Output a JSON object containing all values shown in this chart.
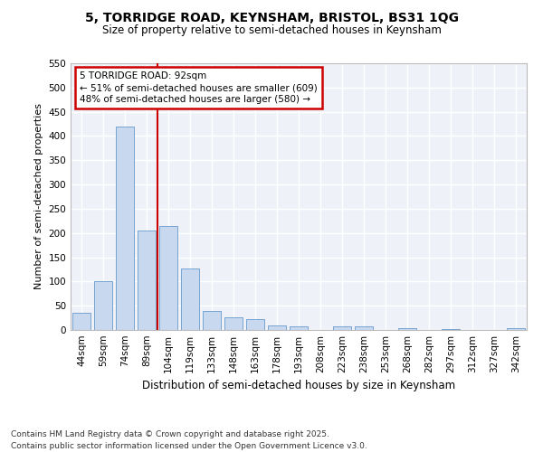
{
  "title1": "5, TORRIDGE ROAD, KEYNSHAM, BRISTOL, BS31 1QG",
  "title2": "Size of property relative to semi-detached houses in Keynsham",
  "categories": [
    "44sqm",
    "59sqm",
    "74sqm",
    "89sqm",
    "104sqm",
    "119sqm",
    "133sqm",
    "148sqm",
    "163sqm",
    "178sqm",
    "193sqm",
    "208sqm",
    "223sqm",
    "238sqm",
    "253sqm",
    "268sqm",
    "282sqm",
    "297sqm",
    "312sqm",
    "327sqm",
    "342sqm"
  ],
  "values": [
    35,
    101,
    420,
    206,
    215,
    126,
    40,
    27,
    22,
    10,
    8,
    0,
    8,
    8,
    0,
    3,
    0,
    2,
    0,
    0,
    4
  ],
  "bar_color": "#c8d8ee",
  "bar_edge_color": "#6699cc",
  "subject_line_color": "#cc0000",
  "annotation_title": "5 TORRIDGE ROAD: 92sqm",
  "annotation_line1": "← 51% of semi-detached houses are smaller (609)",
  "annotation_line2": "48% of semi-detached houses are larger (580) →",
  "annotation_box_edge_color": "#cc0000",
  "ylabel": "Number of semi-detached properties",
  "xlabel": "Distribution of semi-detached houses by size in Keynsham",
  "ylim": [
    0,
    550
  ],
  "yticks": [
    0,
    50,
    100,
    150,
    200,
    250,
    300,
    350,
    400,
    450,
    500,
    550
  ],
  "footer1": "Contains HM Land Registry data © Crown copyright and database right 2025.",
  "footer2": "Contains public sector information licensed under the Open Government Licence v3.0.",
  "plot_bg_color": "#eef2f8",
  "fig_bg_color": "#ffffff",
  "grid_color": "#ffffff",
  "title1_fontsize": 10,
  "title2_fontsize": 8.5,
  "ylabel_fontsize": 8,
  "xlabel_fontsize": 8.5,
  "tick_fontsize": 7.5,
  "annot_fontsize": 7.5,
  "footer_fontsize": 6.5
}
